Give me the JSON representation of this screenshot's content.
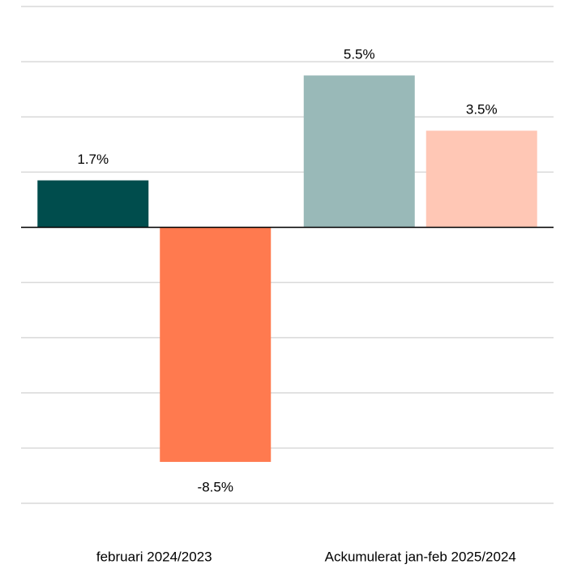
{
  "chart_data": {
    "type": "bar",
    "categories": [
      "februari 2024/2023",
      "Ackumulerat jan-feb 2025/2024"
    ],
    "series": [
      {
        "colors": [
          "#004d4d",
          "#99b9b8"
        ],
        "values": [
          1.7,
          5.5
        ],
        "value_labels": [
          "1.7%",
          "5.5%"
        ]
      },
      {
        "colors": [
          "#ff7a4f",
          "#ffc7b5"
        ],
        "values": [
          -8.5,
          3.5
        ],
        "value_labels": [
          "-8.5%",
          "3.5%"
        ]
      }
    ],
    "ylim": [
      -10,
      8
    ],
    "yticks": [
      -10,
      -8,
      -6,
      -4,
      -2,
      0,
      2,
      4,
      6,
      8
    ],
    "grid": true
  }
}
